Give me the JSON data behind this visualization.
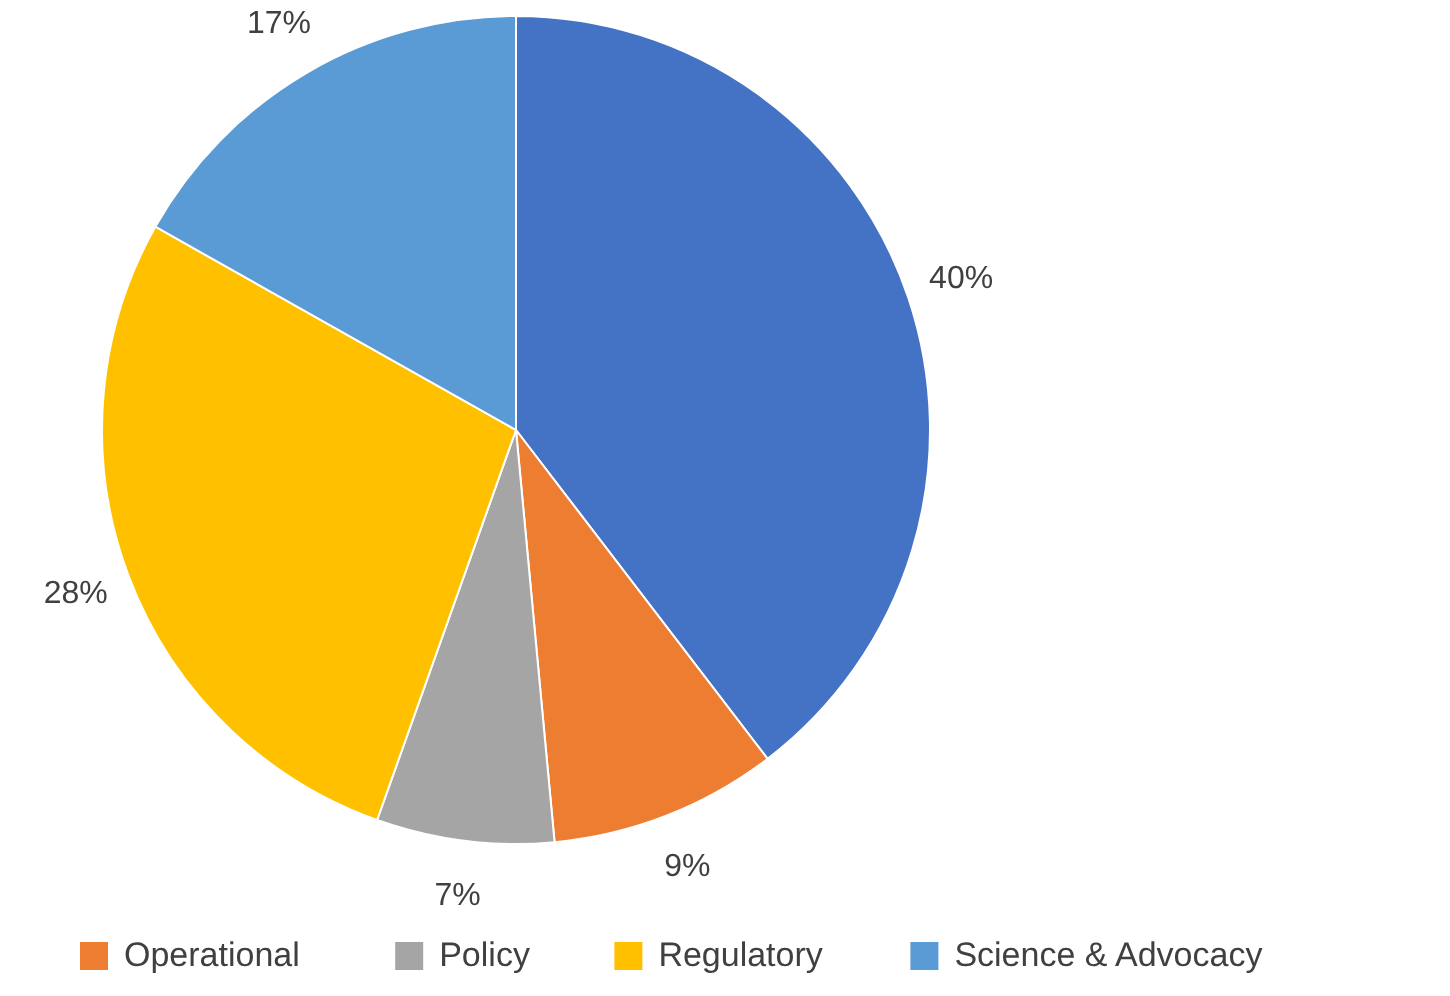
{
  "chart_data": {
    "type": "pie",
    "categories": [
      null,
      "Operational",
      "Policy",
      "Regulatory",
      "Science & Advocacy"
    ],
    "values": [
      40,
      9,
      7,
      28,
      17
    ],
    "value_labels": [
      "40%",
      "9%",
      "7%",
      "28%",
      "17%"
    ],
    "colors": [
      "#4472c4",
      "#ed7d31",
      "#a5a5a5",
      "#ffc000",
      "#5b9bd5"
    ],
    "legend": "bottom"
  }
}
